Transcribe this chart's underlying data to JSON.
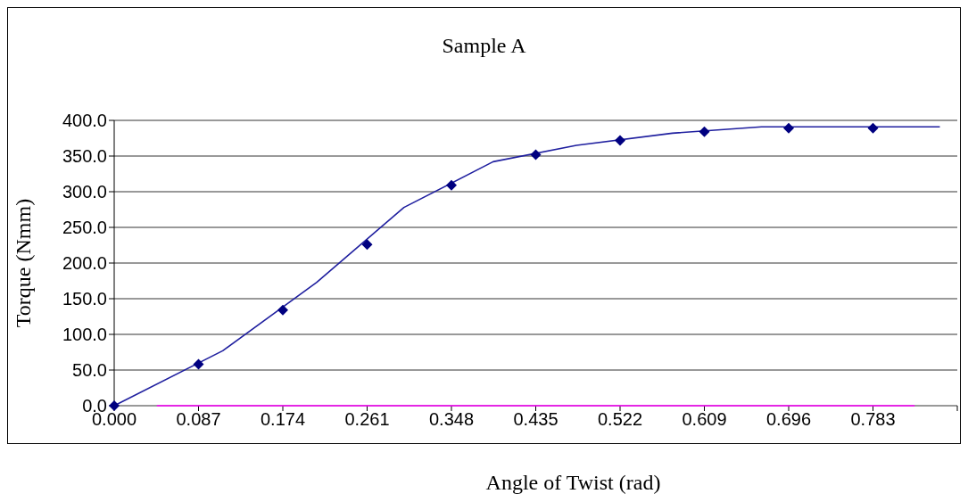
{
  "chart_data": {
    "type": "scatter",
    "title": "Sample A",
    "xlabel": "Angle of Twist (rad)",
    "ylabel": "Torque (Nmm)",
    "xlim": [
      0,
      0.87
    ],
    "xticks": [
      {
        "value": 0,
        "label": "0.000"
      },
      0.087,
      0.174,
      0.261,
      0.348,
      0.435,
      0.522,
      0.609,
      0.696,
      0.783,
      {
        "value": 0.87,
        "label": null
      }
    ],
    "ylim": [
      0,
      400
    ],
    "yticks": [
      {
        "value": 0,
        "label": "0.0"
      },
      {
        "value": 50,
        "label": "50.0"
      },
      {
        "value": 100,
        "label": "100.0"
      },
      {
        "value": 150,
        "label": "150.0"
      },
      {
        "value": 200,
        "label": "200.0"
      },
      {
        "value": 250,
        "label": "250.0"
      },
      {
        "value": 300,
        "label": "300.0"
      },
      {
        "value": 350,
        "label": "350.0"
      },
      {
        "value": 400,
        "label": "400.0"
      }
    ],
    "grid": "y",
    "legend": false,
    "marker": "diamond",
    "series": [
      {
        "type": "line",
        "marker": "none",
        "color": "#1f1f9f",
        "x": [
          0,
          0.112,
          0.209,
          0.299,
          0.391,
          0.477,
          0.576,
          0.668,
          0.852
        ],
        "values": [
          0,
          77,
          173,
          278,
          342,
          365,
          382,
          391,
          391
        ]
      },
      {
        "type": "line",
        "marker": "none",
        "color": "#ff00ff",
        "x": [
          0.044,
          0.826
        ],
        "values": [
          0,
          0
        ]
      },
      {
        "color": "#000080",
        "x": [
          0,
          0.087,
          0.174,
          0.261,
          0.348,
          0.435,
          0.522,
          0.609,
          0.696,
          0.783
        ],
        "values": [
          0,
          58,
          134,
          226,
          309,
          352,
          372,
          384,
          389,
          389
        ]
      }
    ]
  }
}
